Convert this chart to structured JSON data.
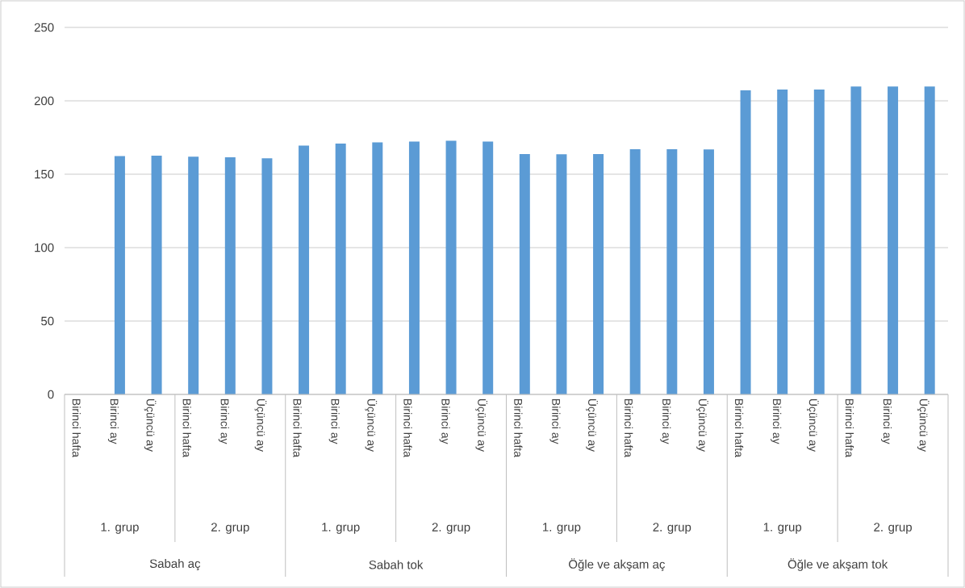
{
  "chart_data": {
    "type": "bar",
    "categories": [
      "Birinci hafta",
      "Birinci ay",
      "Üçüncü ay",
      "Birinci hafta",
      "Birinci ay",
      "Üçüncü ay",
      "Birinci hafta",
      "Birinci ay",
      "Üçüncü ay",
      "Birinci hafta",
      "Birinci ay",
      "Üçüncü ay",
      "Birinci hafta",
      "Birinci ay",
      "Üçüncü ay",
      "Birinci hafta",
      "Birinci ay",
      "Üçüncü ay",
      "Birinci hafta",
      "Birinci ay",
      "Üçüncü ay",
      "Birinci hafta",
      "Birinci ay",
      "Üçüncü ay"
    ],
    "values": [
      null,
      162.4,
      162.6,
      162.0,
      161.6,
      160.8,
      169.5,
      170.9,
      171.7,
      172.2,
      172.8,
      172.2,
      163.8,
      163.6,
      163.8,
      167.1,
      167.1,
      166.9,
      207.1,
      207.7,
      207.7,
      209.8,
      209.8,
      209.8
    ],
    "color": "#5b9bd5",
    "ylim": [
      0,
      250
    ],
    "yticks": [
      0,
      50,
      100,
      150,
      200,
      250
    ],
    "grid": "y",
    "annotations": [
      "1. grup",
      "2. grup",
      "1. grup",
      "2. grup",
      "1. grup",
      "2. grup",
      "1. grup",
      "2. grup",
      "Sabah aç",
      "Sabah tok",
      "Öğle ve akşam aç",
      "Öğle ve akşam tok"
    ]
  }
}
